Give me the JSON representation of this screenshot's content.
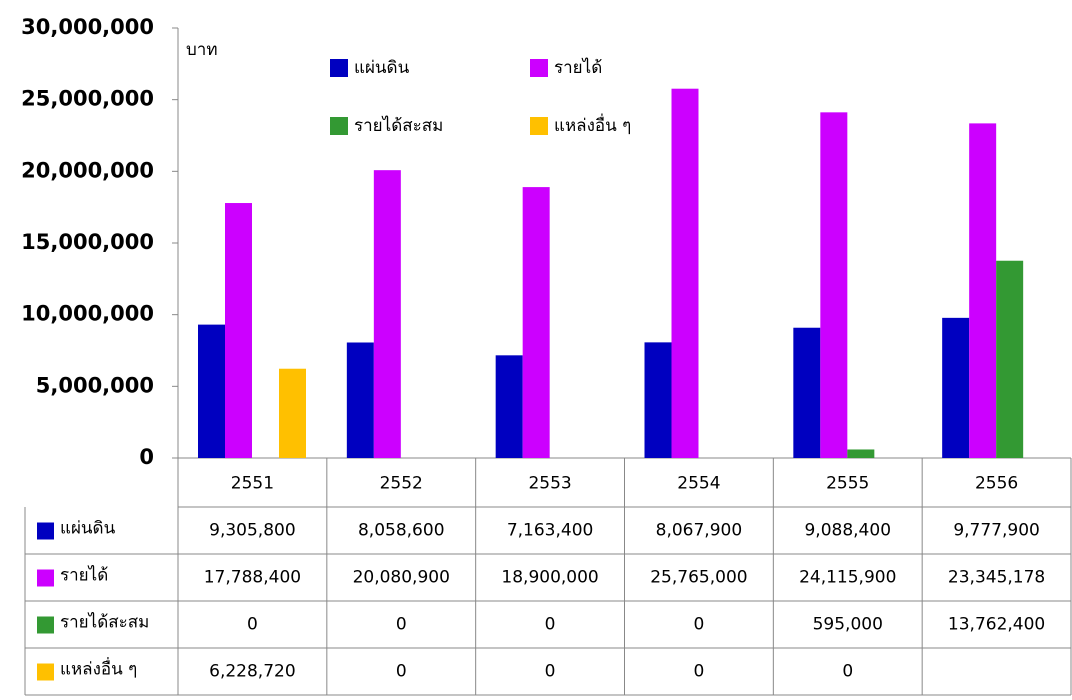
{
  "chart_data": {
    "type": "bar",
    "ylabel": "บาท",
    "categories": [
      "2551",
      "2552",
      "2553",
      "2554",
      "2555",
      "2556"
    ],
    "series": [
      {
        "name": "แผ่นดิน",
        "color": "#0000c0",
        "values": [
          9305800,
          8058600,
          7163400,
          8067900,
          9088400,
          9777900
        ],
        "value_labels": [
          "9,305,800",
          "8,058,600",
          "7,163,400",
          "8,067,900",
          "9,088,400",
          "9,777,900"
        ]
      },
      {
        "name": "รายได้",
        "color": "#cc00ff",
        "values": [
          17788400,
          20080900,
          18900000,
          25765000,
          24115900,
          23345178
        ],
        "value_labels": [
          "17,788,400",
          "20,080,900",
          "18,900,000",
          "25,765,000",
          "24,115,900",
          "23,345,178"
        ]
      },
      {
        "name": "รายได้สะสม",
        "color": "#339933",
        "values": [
          0,
          0,
          0,
          0,
          595000,
          13762400
        ],
        "value_labels": [
          "0",
          "0",
          "0",
          "0",
          "595,000",
          "13,762,400"
        ]
      },
      {
        "name": "แหล่งอื่น ๆ",
        "color": "#ffc000",
        "values": [
          6228720,
          0,
          0,
          0,
          0,
          null
        ],
        "value_labels": [
          "6,228,720",
          "0",
          "0",
          "0",
          "0",
          null
        ]
      }
    ],
    "ylim": [
      0,
      30000000
    ],
    "yticks": [
      0,
      {
        "value": 5000000,
        "label": "5,000,000"
      },
      {
        "value": 10000000,
        "label": "10,000,000"
      },
      {
        "value": 15000000,
        "label": "15,000,000"
      },
      {
        "value": 20000000,
        "label": "20,000,000"
      },
      {
        "value": 25000000,
        "label": "25,000,000"
      },
      {
        "value": 30000000,
        "label": "30,000,000"
      }
    ],
    "grid": false
  }
}
